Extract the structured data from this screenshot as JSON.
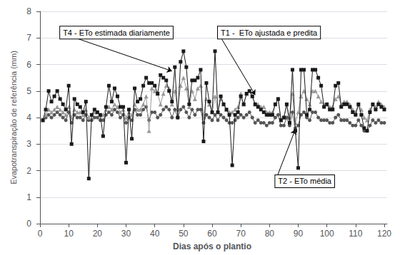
{
  "chart_data": {
    "type": "line",
    "title": "",
    "xlabel": "Dias após o plantio",
    "ylabel": "Evapotranspiração de referência (mm)",
    "xlim": [
      -1,
      121
    ],
    "ylim": [
      0,
      8
    ],
    "xticks": [
      0,
      10,
      20,
      30,
      40,
      50,
      60,
      70,
      80,
      90,
      100,
      110,
      120
    ],
    "yticks": [
      0,
      1,
      2,
      3,
      4,
      5,
      6,
      7,
      8
    ],
    "grid": true,
    "x": [
      1,
      2,
      3,
      4,
      5,
      6,
      7,
      8,
      9,
      10,
      11,
      12,
      13,
      14,
      15,
      16,
      17,
      18,
      19,
      20,
      21,
      22,
      23,
      24,
      25,
      26,
      27,
      28,
      29,
      30,
      31,
      32,
      33,
      34,
      35,
      36,
      37,
      38,
      39,
      40,
      41,
      42,
      43,
      44,
      45,
      46,
      47,
      48,
      49,
      50,
      51,
      52,
      53,
      54,
      55,
      56,
      57,
      58,
      59,
      60,
      61,
      62,
      63,
      64,
      65,
      66,
      67,
      68,
      69,
      70,
      71,
      72,
      73,
      74,
      75,
      76,
      77,
      78,
      79,
      80,
      81,
      82,
      83,
      84,
      85,
      86,
      87,
      88,
      89,
      90,
      91,
      92,
      93,
      94,
      95,
      96,
      97,
      98,
      99,
      100,
      101,
      102,
      103,
      104,
      105,
      106,
      107,
      108,
      109,
      110,
      111,
      112,
      113,
      114,
      115,
      116,
      117,
      118,
      119,
      120
    ],
    "series": [
      {
        "color": "#1a1a1a",
        "marker": "square",
        "line_style": "solid",
        "values": [
          3.9,
          4.3,
          5.0,
          4.6,
          4.8,
          5.0,
          4.7,
          4.5,
          4.3,
          5.2,
          3.0,
          4.7,
          4.5,
          4.4,
          4.2,
          4.6,
          1.7,
          4.1,
          4.3,
          4.2,
          4.1,
          3.3,
          4.4,
          5.2,
          4.6,
          5.1,
          4.8,
          4.4,
          4.4,
          2.3,
          4.3,
          3.2,
          5.1,
          4.6,
          4.7,
          5.2,
          5.5,
          5.3,
          5.3,
          5.2,
          4.9,
          5.6,
          5.5,
          5.4,
          5.0,
          4.6,
          5.9,
          4.0,
          6.1,
          6.5,
          5.9,
          4.5,
          5.4,
          5.4,
          5.5,
          5.8,
          3.1,
          5.3,
          4.6,
          4.2,
          6.5,
          4.2,
          4.8,
          4.5,
          4.3,
          4.1,
          2.2,
          4.1,
          4.2,
          4.8,
          4.5,
          4.9,
          5.0,
          4.8,
          4.5,
          4.4,
          4.3,
          4.2,
          4.1,
          4.1,
          4.1,
          4.5,
          4.7,
          3.9,
          4.0,
          4.5,
          3.8,
          5.8,
          3.5,
          2.1,
          5.8,
          5.8,
          4.1,
          4.3,
          5.8,
          5.8,
          5.5,
          5.2,
          4.4,
          4.5,
          4.3,
          4.3,
          5.2,
          5.3,
          4.4,
          4.5,
          4.5,
          4.4,
          4.2,
          4.1,
          4.5,
          4.1,
          3.6,
          3.5,
          4.2,
          4.5,
          4.3,
          4.5,
          4.4,
          4.3
        ]
      },
      {
        "color": "#999999",
        "marker": "triangle",
        "line_style": "solid",
        "values": [
          3.9,
          4.1,
          4.3,
          4.2,
          4.3,
          4.4,
          4.3,
          4.2,
          4.1,
          4.4,
          4.0,
          4.3,
          4.2,
          4.2,
          4.1,
          4.3,
          4.0,
          4.1,
          4.2,
          4.2,
          4.1,
          4.1,
          4.3,
          4.4,
          4.3,
          4.5,
          4.4,
          4.2,
          4.3,
          4.0,
          4.2,
          4.1,
          4.5,
          4.3,
          4.3,
          4.5,
          4.8,
          3.5,
          5.1,
          5.0,
          4.9,
          4.5,
          4.9,
          5.2,
          5.1,
          4.5,
          5.0,
          4.3,
          5.2,
          5.5,
          5.1,
          4.4,
          5.0,
          4.7,
          5.1,
          5.2,
          4.0,
          4.7,
          4.5,
          4.2,
          4.8,
          4.2,
          4.7,
          4.5,
          4.3,
          4.2,
          4.2,
          4.3,
          4.4,
          4.9,
          4.5,
          4.9,
          5.0,
          4.8,
          4.5,
          4.5,
          4.4,
          4.4,
          4.2,
          4.2,
          4.2,
          4.5,
          4.7,
          3.9,
          4.0,
          4.5,
          4.0,
          4.9,
          3.8,
          4.2,
          4.8,
          5.0,
          4.7,
          4.5,
          5.0,
          5.0,
          4.8,
          4.6,
          4.5,
          4.5,
          4.4,
          4.4,
          4.7,
          4.8,
          4.5,
          4.6,
          4.6,
          4.5,
          4.3,
          4.2,
          4.5,
          4.3,
          4.0,
          3.9,
          4.3,
          4.5,
          4.4,
          4.6,
          4.5,
          4.4
        ]
      },
      {
        "color": "#555555",
        "marker": "circle",
        "line_style": "solid",
        "values": [
          3.9,
          4.0,
          4.1,
          4.0,
          4.1,
          4.2,
          4.1,
          4.0,
          3.9,
          4.2,
          3.8,
          4.1,
          4.0,
          4.0,
          3.9,
          4.1,
          3.9,
          3.9,
          4.0,
          4.0,
          3.9,
          3.9,
          4.1,
          4.2,
          4.1,
          4.3,
          4.2,
          4.0,
          4.1,
          3.8,
          4.0,
          3.9,
          4.3,
          4.1,
          4.1,
          4.3,
          4.4,
          3.9,
          4.2,
          4.2,
          4.0,
          4.1,
          4.3,
          4.4,
          4.3,
          4.0,
          4.3,
          4.0,
          4.3,
          4.4,
          4.2,
          4.0,
          4.3,
          4.1,
          4.3,
          4.3,
          3.8,
          4.1,
          4.0,
          3.9,
          4.1,
          3.9,
          4.1,
          4.0,
          3.9,
          3.8,
          3.8,
          3.9,
          4.0,
          4.1,
          4.0,
          4.1,
          4.2,
          4.0,
          3.8,
          3.9,
          3.8,
          3.8,
          3.7,
          3.8,
          3.8,
          4.0,
          4.1,
          3.7,
          3.7,
          4.0,
          3.7,
          4.2,
          3.6,
          3.7,
          4.1,
          4.2,
          4.0,
          3.9,
          4.2,
          4.2,
          4.0,
          3.9,
          3.9,
          3.9,
          3.8,
          3.8,
          4.0,
          4.1,
          3.9,
          3.9,
          3.9,
          3.8,
          3.7,
          3.7,
          3.9,
          3.7,
          3.5,
          3.5,
          3.7,
          3.9,
          3.8,
          3.9,
          3.8,
          3.8
        ]
      }
    ],
    "annotations": [
      {
        "text": "T4 - ETo estimada diariamente",
        "x": 46,
        "y": 5.75,
        "text_x": 7,
        "text_y": 7.2
      },
      {
        "text": "T1 -  ETo ajustada e predita",
        "x": 75,
        "y": 4.85,
        "text_x": 62,
        "text_y": 7.2
      },
      {
        "text": "T2 - ETo média",
        "x": 89,
        "y": 3.55,
        "text_x": 82,
        "text_y": 1.6
      }
    ]
  }
}
